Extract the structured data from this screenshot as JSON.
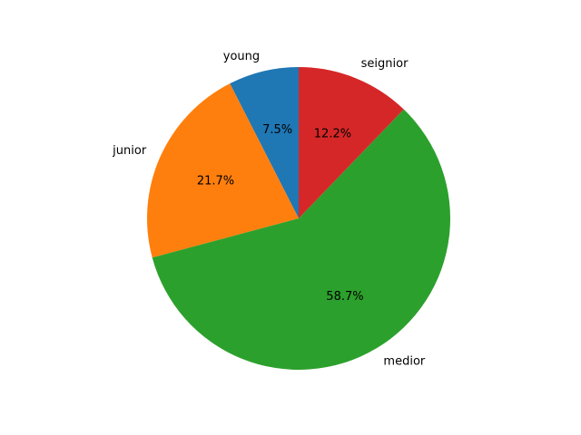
{
  "chart_data": {
    "type": "pie",
    "title": "",
    "categories": [
      "young",
      "junior",
      "medior",
      "seignior"
    ],
    "values": [
      7.5,
      21.7,
      58.7,
      12.2
    ],
    "value_labels": [
      "7.5%",
      "21.7%",
      "58.7%",
      "12.2%"
    ],
    "colors": [
      "#1f77b4",
      "#ff7f0e",
      "#2ca02c",
      "#d62728"
    ],
    "start_angle_deg": 90,
    "direction": "counterclockwise",
    "legend": false
  }
}
